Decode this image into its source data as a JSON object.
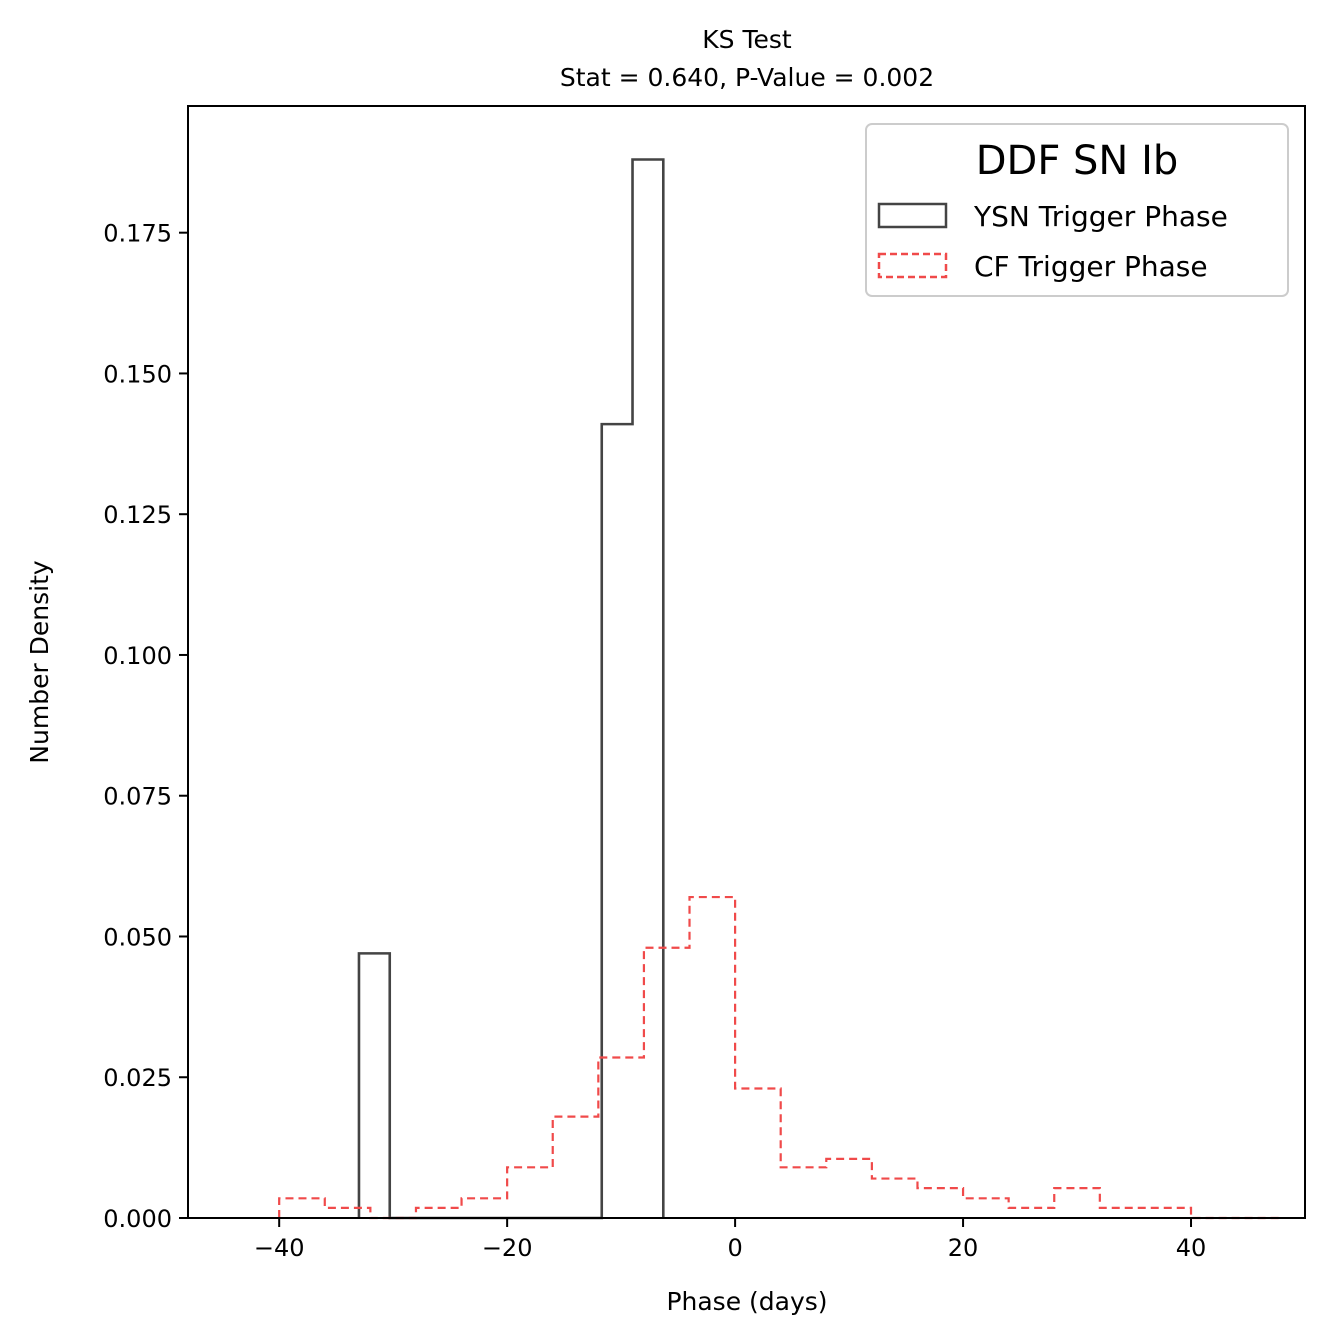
{
  "chart_data": {
    "type": "histogram",
    "title": "KS Test",
    "subtitle": "Stat = 0.640, P-Value = 0.002",
    "xlabel": "Phase (days)",
    "ylabel": "Number Density",
    "xlim": [
      -48,
      50
    ],
    "ylim": [
      0,
      0.1975
    ],
    "xticks": [
      {
        "value": -40,
        "label": "−40"
      },
      {
        "value": -20,
        "label": "−20"
      },
      {
        "value": 0,
        "label": "0"
      },
      {
        "value": 20,
        "label": "20"
      },
      {
        "value": 40,
        "label": "40"
      }
    ],
    "yticks": [
      {
        "value": 0.0,
        "label": "0.000"
      },
      {
        "value": 0.025,
        "label": "0.025"
      },
      {
        "value": 0.05,
        "label": "0.050"
      },
      {
        "value": 0.075,
        "label": "0.075"
      },
      {
        "value": 0.1,
        "label": "0.100"
      },
      {
        "value": 0.125,
        "label": "0.125"
      },
      {
        "value": 0.15,
        "label": "0.150"
      },
      {
        "value": 0.175,
        "label": "0.175"
      }
    ],
    "grid": false,
    "legend": {
      "title": "DDF SN Ib",
      "position": "top-right"
    },
    "series": [
      {
        "name": "YSN Trigger Phase",
        "style": "solid-step",
        "color": "#444444",
        "edges": [
          -33.0,
          -30.3,
          -27.6,
          -24.9,
          -22.2,
          -19.5,
          -16.8,
          -14.1,
          -11.7,
          -9.0,
          -6.3
        ],
        "values": [
          0.047,
          0,
          0,
          0,
          0,
          0,
          0,
          0,
          0.141,
          0.188
        ]
      },
      {
        "name": "CF Trigger Phase",
        "style": "dashed-step",
        "color": "#f04a4a",
        "edges": [
          -40,
          -36,
          -32,
          -28,
          -24,
          -20,
          -16,
          -12,
          -8,
          -4,
          0,
          4,
          8,
          12,
          16,
          20,
          24,
          28,
          32,
          36,
          40,
          44,
          48
        ],
        "values": [
          0.0035,
          0.0018,
          0,
          0.0018,
          0.0035,
          0.009,
          0.018,
          0.0285,
          0.048,
          0.057,
          0.023,
          0.009,
          0.0105,
          0.007,
          0.0053,
          0.0035,
          0.0018,
          0.0053,
          0.0018,
          0.0018,
          0,
          0
        ]
      }
    ]
  }
}
